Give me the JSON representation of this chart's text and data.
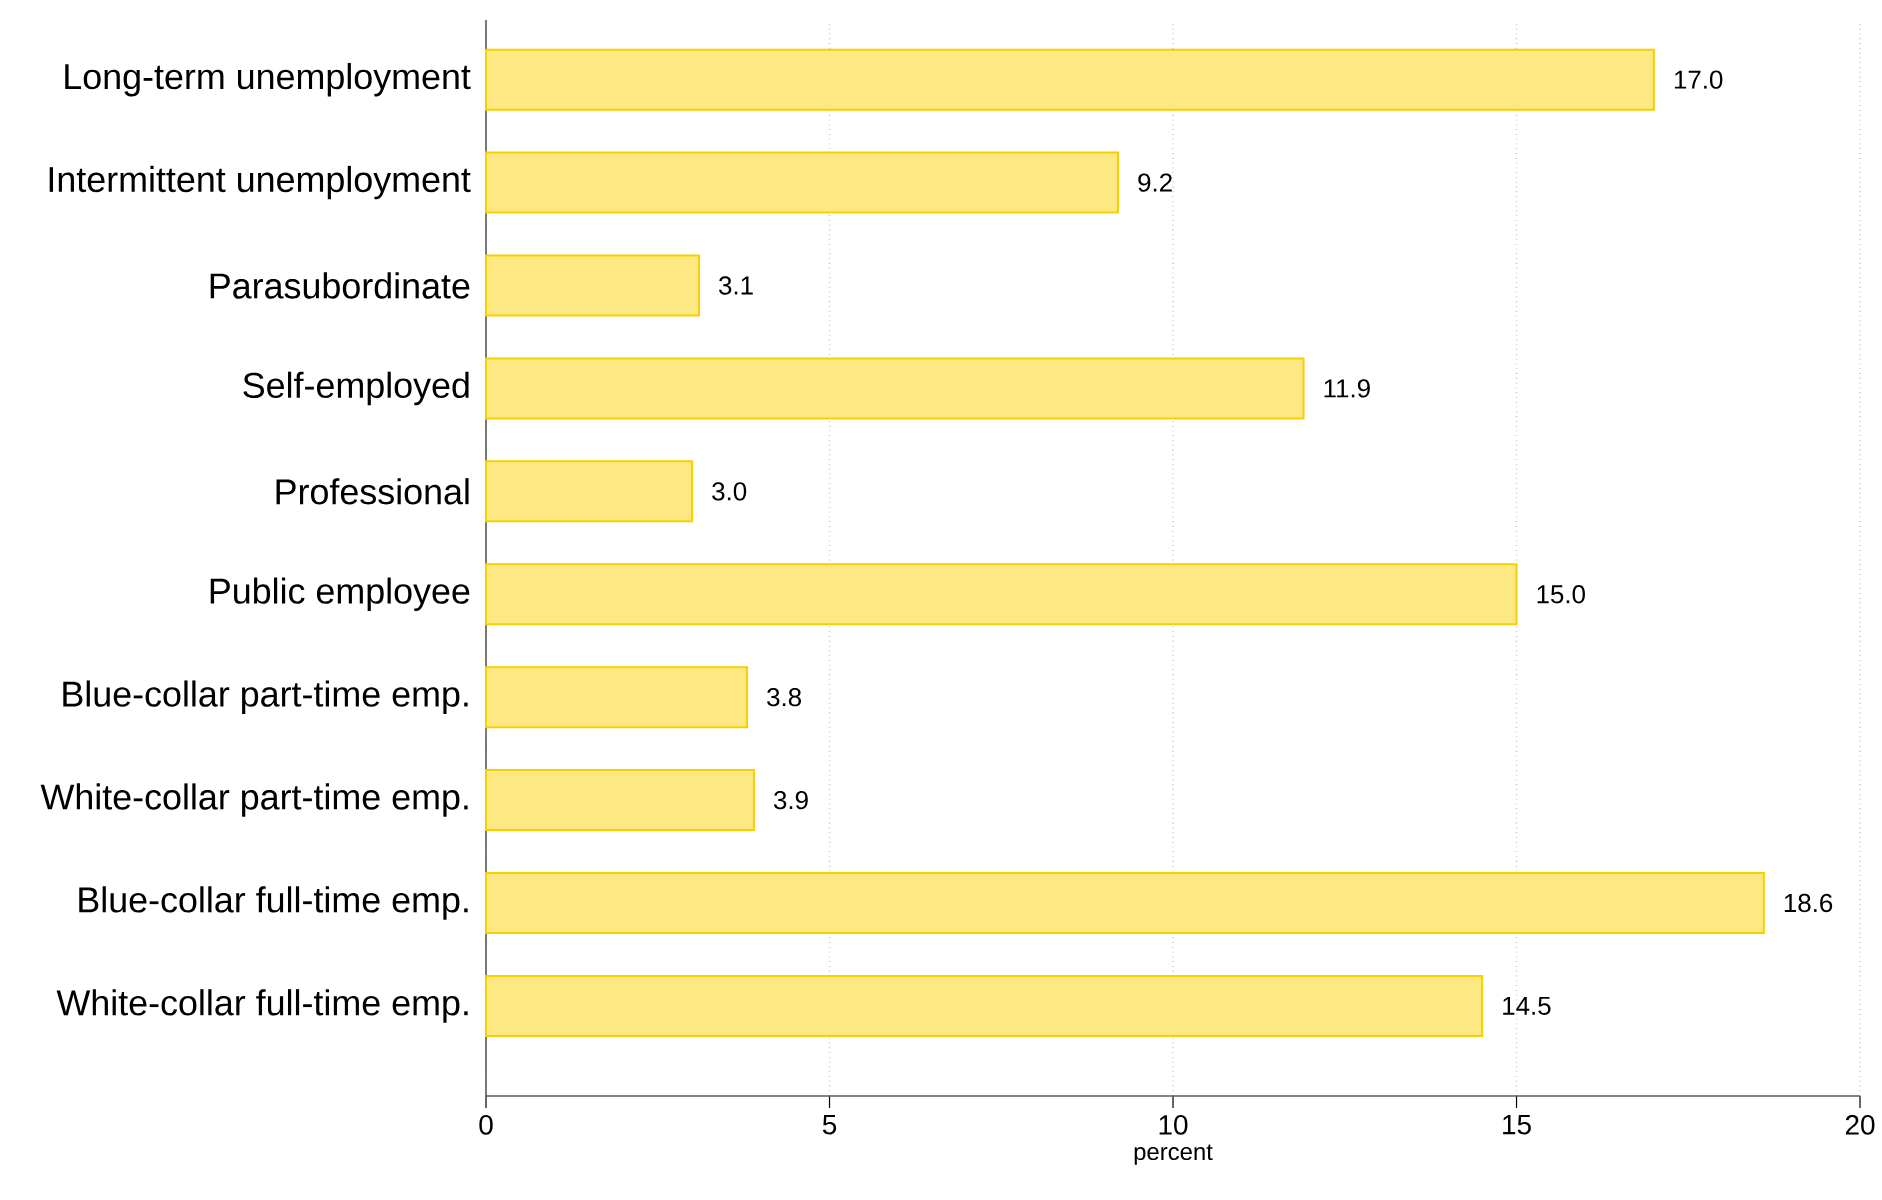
{
  "chart_data": {
    "type": "bar",
    "orientation": "horizontal",
    "xlabel": "percent",
    "categories": [
      "Long-term unemployment",
      "Intermittent unemployment",
      "Parasubordinate",
      "Self-employed",
      "Professional",
      "Public employee",
      "Blue-collar part-time emp.",
      "White-collar part-time emp.",
      "Blue-collar full-time emp.",
      "White-collar full-time emp."
    ],
    "values": [
      17.0,
      9.2,
      3.1,
      11.9,
      3.0,
      15.0,
      3.8,
      3.9,
      18.6,
      14.5
    ],
    "value_labels": [
      "17.0",
      "9.2",
      "3.1",
      "11.9",
      "3.0",
      "15.0",
      "3.8",
      "3.9",
      "18.6",
      "14.5"
    ],
    "color": "#fee883",
    "xlim": [
      0,
      20
    ],
    "xticks": [
      0,
      5,
      10,
      15,
      20
    ],
    "grid": "x"
  }
}
